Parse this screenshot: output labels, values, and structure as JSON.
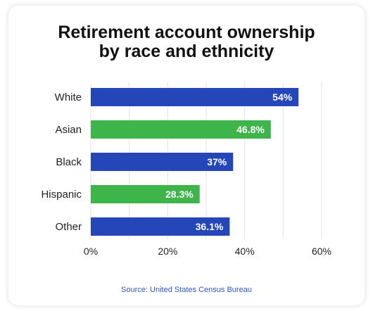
{
  "title": [
    "Retirement account ownership",
    "by race and ethnicity"
  ],
  "source": "Source: United States Census Bureau",
  "chart_data": {
    "type": "bar",
    "orientation": "horizontal",
    "categories": [
      "White",
      "Asian",
      "Black",
      "Hispanic",
      "Other"
    ],
    "values": [
      54,
      46.8,
      37,
      28.3,
      36.1
    ],
    "value_labels": [
      "54%",
      "46.8%",
      "37%",
      "28.3%",
      "36.1%"
    ],
    "bar_colors": [
      "#2446b8",
      "#3db54a",
      "#2446b8",
      "#3db54a",
      "#2446b8"
    ],
    "xlim": [
      0,
      60
    ],
    "xticks": [
      0,
      20,
      40,
      60
    ],
    "xtick_labels": [
      "0%",
      "20%",
      "40%",
      "60%"
    ],
    "grid": true,
    "grid_color": "#e3e3e3",
    "title": "Retirement account ownership by race and ethnicity",
    "xlabel": "",
    "ylabel": ""
  }
}
